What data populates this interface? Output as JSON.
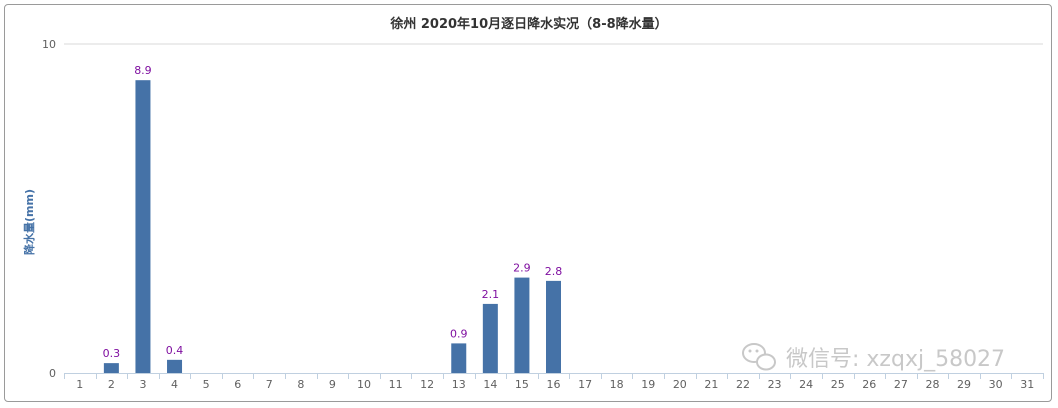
{
  "chart_data": {
    "type": "bar",
    "title": "徐州 2020年10月逐日降水实况（8-8降水量）",
    "ylabel": "降水量(mm)",
    "xlabel": "",
    "ylim": [
      0,
      10
    ],
    "yticks": [
      0,
      10
    ],
    "grid": true,
    "legend": "none",
    "categories": [
      "1",
      "2",
      "3",
      "4",
      "5",
      "6",
      "7",
      "8",
      "9",
      "10",
      "11",
      "12",
      "13",
      "14",
      "15",
      "16",
      "17",
      "18",
      "19",
      "20",
      "21",
      "22",
      "23",
      "24",
      "25",
      "26",
      "27",
      "28",
      "29",
      "30",
      "31"
    ],
    "values": [
      0,
      0.3,
      8.9,
      0.4,
      0,
      0,
      0,
      0,
      0,
      0,
      0,
      0,
      0.9,
      2.1,
      2.9,
      2.8,
      0,
      0,
      0,
      0,
      0,
      0,
      0,
      0,
      0,
      0,
      0,
      0,
      0,
      0,
      0
    ],
    "data_labels": [
      "",
      "0.3",
      "8.9",
      "0.4",
      "",
      "",
      "",
      "",
      "",
      "",
      "",
      "",
      "0.9",
      "2.1",
      "2.9",
      "2.8",
      "",
      "",
      "",
      "",
      "",
      "",
      "",
      "",
      "",
      "",
      "",
      "",
      "",
      "",
      ""
    ],
    "bar_color": "#4572a7",
    "label_color": "#7f0fa0"
  },
  "watermark": {
    "icon": "wechat-icon",
    "text": "微信号: xzqxj_58027"
  }
}
